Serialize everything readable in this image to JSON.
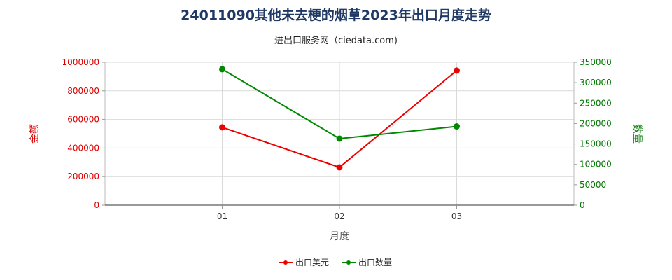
{
  "chart_data": {
    "type": "line",
    "title": "24011090其他未去梗的烟草2023年出口月度走势",
    "subtitle": "进出口服务网（ciedata.com)",
    "xlabel": "月度",
    "ylabel_left": "金额",
    "ylabel_right": "数量",
    "categories": [
      "01",
      "02",
      "03"
    ],
    "y_left": {
      "min": 0,
      "max": 1000000,
      "ticks": [
        "0",
        "200000",
        "400000",
        "600000",
        "800000",
        "1000000"
      ],
      "color": "#dd0000"
    },
    "y_right": {
      "min": 0,
      "max": 350000,
      "ticks": [
        "0",
        "50000",
        "100000",
        "150000",
        "200000",
        "250000",
        "300000",
        "350000"
      ],
      "color": "#007700"
    },
    "series": [
      {
        "name": "出口美元",
        "axis": "left",
        "color": "#ee0000",
        "values": [
          545000,
          265000,
          942000
        ]
      },
      {
        "name": "出口数量",
        "axis": "right",
        "color": "#008800",
        "values": [
          333000,
          163000,
          193000
        ]
      }
    ],
    "grid": true,
    "legend_position": "bottom-center"
  }
}
